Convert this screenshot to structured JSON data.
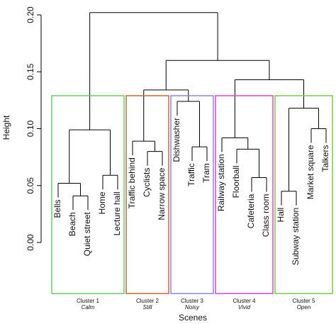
{
  "chart_data": {
    "type": "dendrogram",
    "y_label": "Height",
    "x_label": "Scenes",
    "ylim": [
      0,
      0.2
    ],
    "yticks": [
      {
        "value": 0,
        "label": "0.00"
      },
      0.05,
      {
        "value": 0.1,
        "label": "0.10"
      },
      0.15,
      {
        "value": 0.2,
        "label": "0.20"
      }
    ],
    "line_color": "#000000",
    "tree": {
      "height": 0.202,
      "children": [
        {
          "height": 0.099,
          "cluster": {
            "name": "Cluster 1",
            "label": "Calm",
            "color": "#66cc66"
          },
          "children": [
            {
              "height": 0.052,
              "children": [
                {
                  "label": "Bells"
                },
                {
                  "height": 0.041,
                  "children": [
                    {
                      "label": "Beach"
                    },
                    {
                      "label": "Quiet street"
                    }
                  ]
                }
              ]
            },
            {
              "height": 0.059,
              "children": [
                {
                  "label": "Home"
                },
                {
                  "label": "Lecture hall"
                }
              ]
            }
          ]
        },
        {
          "height": 0.16,
          "children": [
            {
              "height": 0.134,
              "children": [
                {
                  "height": 0.089,
                  "cluster": {
                    "name": "Cluster 2",
                    "label": "Still",
                    "color": "#cc6633"
                  },
                  "children": [
                    {
                      "label": "Traffic behind"
                    },
                    {
                      "height": 0.08,
                      "children": [
                        {
                          "label": "Cyclists"
                        },
                        {
                          "label": "Narrow space"
                        }
                      ]
                    }
                  ]
                },
                {
                  "height": 0.124,
                  "cluster": {
                    "name": "Cluster 3",
                    "label": "Noisy",
                    "color": "#8888dd"
                  },
                  "children": [
                    {
                      "label": "Dishwasher"
                    },
                    {
                      "height": 0.084,
                      "children": [
                        {
                          "label": "Traffic"
                        },
                        {
                          "label": "Tram"
                        }
                      ]
                    }
                  ]
                }
              ]
            },
            {
              "height": 0.143,
              "children": [
                {
                  "height": 0.092,
                  "cluster": {
                    "name": "Cluster 4",
                    "label": "Vivid",
                    "color": "#dd44cc"
                  },
                  "children": [
                    {
                      "label": "Railway station"
                    },
                    {
                      "height": 0.082,
                      "children": [
                        {
                          "label": "Floorball"
                        },
                        {
                          "height": 0.057,
                          "children": [
                            {
                              "label": "Cafeteria"
                            },
                            {
                              "label": "Class room"
                            }
                          ]
                        }
                      ]
                    }
                  ]
                },
                {
                  "height": 0.118,
                  "cluster": {
                    "name": "Cluster 5",
                    "label": "Open",
                    "color": "#77cc44"
                  },
                  "children": [
                    {
                      "height": 0.045,
                      "children": [
                        {
                          "label": "Hall"
                        },
                        {
                          "label": "Subway station"
                        }
                      ]
                    },
                    {
                      "height": 0.1,
                      "children": [
                        {
                          "label": "Market square"
                        },
                        {
                          "label": "Talkers"
                        }
                      ]
                    }
                  ]
                }
              ]
            }
          ]
        }
      ]
    }
  }
}
